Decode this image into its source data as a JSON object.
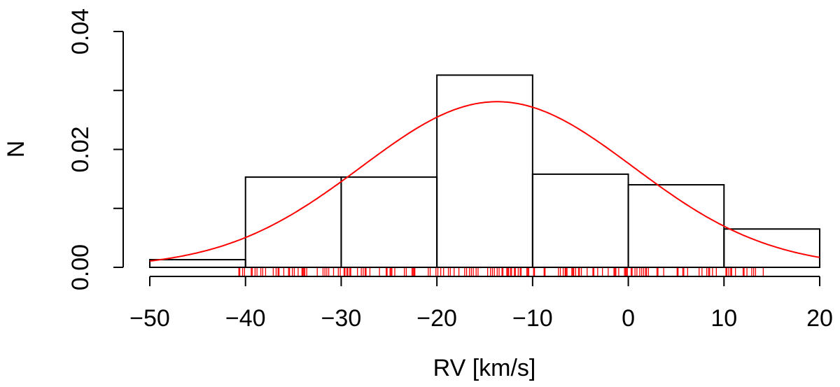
{
  "chart_data": {
    "type": "bar",
    "subtype": "histogram with normal density fit and rug",
    "title": "",
    "xlabel": "RV [km/s]",
    "ylabel": "N",
    "xlim": [
      -50,
      20
    ],
    "ylim": [
      0,
      0.04
    ],
    "x_ticks": [
      -50,
      -40,
      -30,
      -20,
      -10,
      0,
      10,
      20
    ],
    "x_tick_labels": [
      "−50",
      "−40",
      "−30",
      "−20",
      "−10",
      "0",
      "10",
      "20"
    ],
    "y_ticks": [
      0,
      0.01,
      0.02,
      0.03,
      0.04
    ],
    "y_tick_labels": [
      "0.00",
      "",
      "0.02",
      "",
      "0.04"
    ],
    "grid": false,
    "bins": [
      {
        "from": -50,
        "to": -40,
        "value": 0.0013
      },
      {
        "from": -40,
        "to": -30,
        "value": 0.0153
      },
      {
        "from": -30,
        "to": -20,
        "value": 0.0153
      },
      {
        "from": -20,
        "to": -10,
        "value": 0.0326
      },
      {
        "from": -10,
        "to": 0,
        "value": 0.0158
      },
      {
        "from": 0,
        "to": 10,
        "value": 0.014
      },
      {
        "from": 10,
        "to": 20,
        "value": 0.0065
      }
    ],
    "fit_curve": {
      "type": "normal",
      "mean": -13.7,
      "sd": 14.2,
      "color": "#ff0000"
    },
    "rug": {
      "color": "#ff0000",
      "values": [
        -40.7,
        -40.6,
        -40.3,
        -40.1,
        -39.4,
        -39.3,
        -39.0,
        -38.8,
        -38.4,
        -38.2,
        -37.9,
        -37.1,
        -36.8,
        -36.6,
        -36.5,
        -36.0,
        -35.5,
        -35.4,
        -35.1,
        -34.9,
        -34.5,
        -34.1,
        -34.0,
        -33.9,
        -33.8,
        -33.6,
        -32.5,
        -31.9,
        -31.7,
        -31.5,
        -31.3,
        -30.8,
        -30.3,
        -30.1,
        -29.7,
        -29.6,
        -29.4,
        -29.3,
        -29.1,
        -29.0,
        -28.3,
        -27.9,
        -27.7,
        -27.5,
        -27.4,
        -27.0,
        -26.0,
        -25.3,
        -25.2,
        -24.9,
        -24.8,
        -24.7,
        -24.4,
        -23.4,
        -23.2,
        -22.6,
        -22.5,
        -22.4,
        -22.3,
        -20.9,
        -20.7,
        -20.1,
        -19.9,
        -19.6,
        -19.3,
        -18.8,
        -18.6,
        -18.2,
        -17.7,
        -17.1,
        -16.9,
        -16.6,
        -16.4,
        -16.2,
        -15.9,
        -15.7,
        -14.7,
        -14.4,
        -14.2,
        -14.0,
        -13.7,
        -13.5,
        -13.2,
        -13.1,
        -12.7,
        -12.6,
        -12.5,
        -12.3,
        -12.2,
        -11.9,
        -11.8,
        -11.5,
        -11.3,
        -11.2,
        -10.6,
        -10.5,
        -10.4,
        -9.9,
        -9.8,
        -8.8,
        -8.7,
        -7.3,
        -7.1,
        -6.8,
        -6.6,
        -6.5,
        -6.4,
        -5.9,
        -5.8,
        -5.7,
        -5.5,
        -5.2,
        -5.1,
        -4.9,
        -4.3,
        -3.7,
        -3.6,
        -3.2,
        -2.7,
        -2.1,
        -1.5,
        -1.4,
        -1.3,
        -1.0,
        -0.4,
        -0.3,
        -0.2,
        -0.1,
        0.3,
        0.4,
        0.7,
        0.9,
        1.2,
        1.4,
        1.6,
        1.8,
        1.9,
        2.1,
        3.0,
        3.1,
        3.7,
        5.1,
        5.2,
        5.7,
        5.8,
        6.2,
        7.4,
        7.7,
        8.2,
        8.4,
        8.5,
        8.8,
        9.2,
        10.2,
        10.3,
        10.5,
        10.7,
        10.8,
        11.2,
        12.0,
        12.1,
        12.4,
        12.9,
        13.1,
        13.3,
        14.1
      ]
    }
  }
}
